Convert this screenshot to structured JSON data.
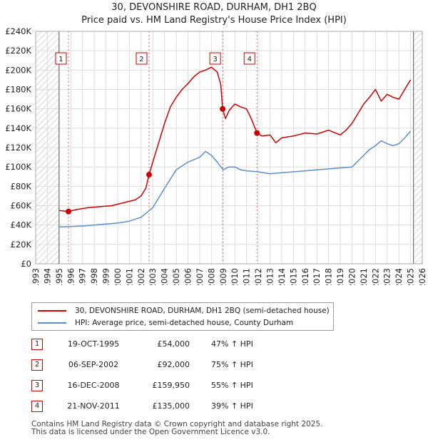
{
  "title_line1": "30, DEVONSHIRE ROAD, DURHAM, DH1 2BQ",
  "title_line2": "Price paid vs. HM Land Registry's House Price Index (HPI)",
  "colors": {
    "price_line": "#cc0000",
    "hpi_line": "#5b8fc7",
    "hatch": "#cccccc",
    "grid": "#dddddd"
  },
  "chart_data": {
    "type": "line",
    "xlim": [
      1993,
      2026
    ],
    "ylim": [
      0,
      240000
    ],
    "data_start": 1995.0,
    "data_end": 2025.25,
    "y_ticks": [
      0,
      20000,
      40000,
      60000,
      80000,
      100000,
      120000,
      140000,
      160000,
      180000,
      200000,
      220000,
      240000
    ],
    "y_tick_labels": [
      "£0",
      "£20K",
      "£40K",
      "£60K",
      "£80K",
      "£100K",
      "£120K",
      "£140K",
      "£160K",
      "£180K",
      "£200K",
      "£220K",
      "£240K"
    ],
    "x_ticks": [
      1993,
      1994,
      1995,
      1996,
      1997,
      1998,
      1999,
      2000,
      2001,
      2002,
      2003,
      2004,
      2005,
      2006,
      2007,
      2008,
      2009,
      2010,
      2011,
      2012,
      2013,
      2014,
      2015,
      2016,
      2017,
      2018,
      2019,
      2020,
      2021,
      2022,
      2023,
      2024,
      2025,
      2026
    ],
    "x_tick_labels": [
      "1993",
      "1994",
      "1995",
      "1996",
      "1997",
      "1998",
      "1999",
      "2000",
      "2001",
      "2002",
      "2003",
      "2004",
      "2005",
      "2006",
      "2007",
      "2008",
      "2009",
      "2010",
      "2011",
      "2012",
      "2013",
      "2014",
      "2015",
      "2016",
      "2017",
      "2018",
      "2019",
      "2020",
      "2021",
      "2022",
      "2023",
      "2024",
      "2025",
      "2026"
    ],
    "series": [
      {
        "name": "30, DEVONSHIRE ROAD, DURHAM, DH1 2BQ (semi-detached house)",
        "x": [
          1995.0,
          1995.8,
          1996.5,
          1997.5,
          1998.5,
          1999.5,
          2000.5,
          2001.5,
          2002.0,
          2002.4,
          2002.68,
          2003.0,
          2003.5,
          2004.0,
          2004.5,
          2005.0,
          2005.5,
          2006.0,
          2006.5,
          2007.0,
          2007.5,
          2008.0,
          2008.5,
          2008.8,
          2008.96,
          2009.2,
          2009.5,
          2010.0,
          2010.5,
          2011.0,
          2011.4,
          2011.89,
          2012.3,
          2013.0,
          2013.5,
          2014.0,
          2015.0,
          2016.0,
          2017.0,
          2018.0,
          2019.0,
          2019.5,
          2020.0,
          2020.5,
          2021.0,
          2021.5,
          2022.0,
          2022.5,
          2023.0,
          2023.5,
          2024.0,
          2024.5,
          2025.0
        ],
        "y": [
          55000,
          54000,
          56000,
          58000,
          59000,
          60000,
          63000,
          66000,
          70000,
          78000,
          92000,
          105000,
          125000,
          145000,
          162000,
          172000,
          180000,
          186000,
          193000,
          198000,
          200000,
          203000,
          198000,
          185000,
          159950,
          150000,
          158000,
          165000,
          162000,
          160000,
          150000,
          135000,
          132000,
          133000,
          125000,
          130000,
          132000,
          135000,
          134000,
          138000,
          133000,
          138000,
          145000,
          155000,
          165000,
          172000,
          180000,
          168000,
          175000,
          172000,
          170000,
          180000,
          190000
        ]
      },
      {
        "name": "HPI: Average price, semi-detached house, County Durham",
        "x": [
          1995.0,
          1996.0,
          1997.0,
          1998.0,
          1999.0,
          2000.0,
          2001.0,
          2002.0,
          2003.0,
          2004.0,
          2005.0,
          2006.0,
          2007.0,
          2007.5,
          2008.0,
          2008.5,
          2009.0,
          2009.5,
          2010.0,
          2010.5,
          2011.0,
          2012.0,
          2013.0,
          2014.0,
          2015.0,
          2016.0,
          2017.0,
          2018.0,
          2019.0,
          2020.0,
          2020.5,
          2021.0,
          2021.5,
          2022.0,
          2022.5,
          2023.0,
          2023.5,
          2024.0,
          2024.5,
          2025.0
        ],
        "y": [
          38000,
          38500,
          39000,
          40000,
          41000,
          42000,
          44000,
          48000,
          58000,
          78000,
          97000,
          105000,
          110000,
          116000,
          112000,
          105000,
          97000,
          100000,
          100000,
          97000,
          96000,
          95000,
          93000,
          94000,
          95000,
          96000,
          97000,
          98000,
          99000,
          100000,
          106000,
          112000,
          118000,
          122000,
          127000,
          124000,
          122000,
          124000,
          130000,
          137000
        ]
      }
    ],
    "sales": [
      {
        "n": "1",
        "x": 1995.8,
        "y": 54000
      },
      {
        "n": "2",
        "x": 2002.68,
        "y": 92000
      },
      {
        "n": "3",
        "x": 2008.96,
        "y": 159950
      },
      {
        "n": "4",
        "x": 2011.89,
        "y": 135000
      }
    ]
  },
  "legend": {
    "price_label": "30, DEVONSHIRE ROAD, DURHAM, DH1 2BQ (semi-detached house)",
    "hpi_label": "HPI: Average price, semi-detached house, County Durham"
  },
  "sales_table": [
    {
      "num": "1",
      "date": "19-OCT-1995",
      "price": "£54,000",
      "hpi": "47% ↑ HPI"
    },
    {
      "num": "2",
      "date": "06-SEP-2002",
      "price": "£92,000",
      "hpi": "75% ↑ HPI"
    },
    {
      "num": "3",
      "date": "16-DEC-2008",
      "price": "£159,950",
      "hpi": "55% ↑ HPI"
    },
    {
      "num": "4",
      "date": "21-NOV-2011",
      "price": "£135,000",
      "hpi": "39% ↑ HPI"
    }
  ],
  "footer": {
    "line1": "Contains HM Land Registry data © Crown copyright and database right 2025.",
    "line2": "This data is licensed under the Open Government Licence v3.0."
  }
}
